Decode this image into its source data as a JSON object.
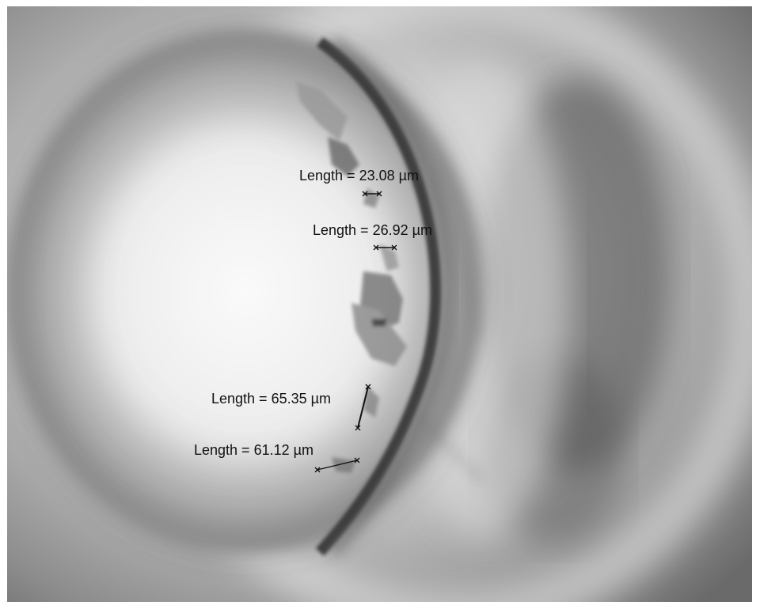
{
  "image": {
    "description_type": "grayscale optical micrograph",
    "marker_color": "#111111"
  },
  "measurements": [
    {
      "label": "Length = 23.08 µm"
    },
    {
      "label": "Length = 26.92 µm"
    },
    {
      "label": "Length = 65.35 µm"
    },
    {
      "label": "Length = 61.12 µm"
    }
  ]
}
